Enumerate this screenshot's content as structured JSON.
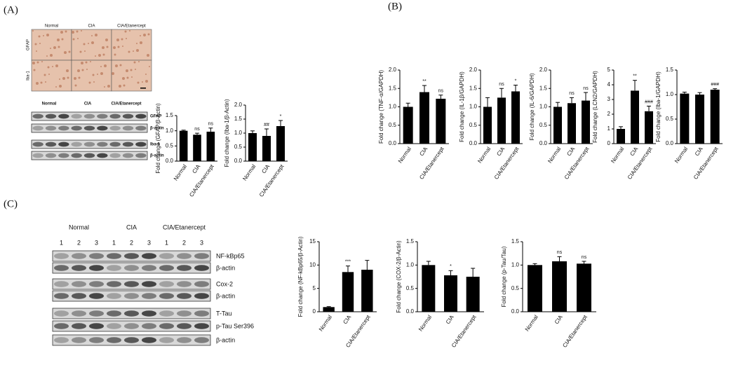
{
  "figure": {
    "panels": [
      "(A)",
      "(B)",
      "(C)"
    ],
    "micro": {
      "columns": [
        "Normal",
        "CIA",
        "CIA/Etanercept"
      ],
      "rows": [
        "GFAP",
        "Iba-1"
      ]
    },
    "blot_a": {
      "groups": [
        "Normal",
        "CIA",
        "CIA/Etanercept"
      ],
      "rows": [
        "GFAP",
        "β-actin",
        "Iba-1",
        "β-actin"
      ]
    },
    "blot_c": {
      "groups": [
        "Normal",
        "CIA",
        "CIA/Etanercept"
      ],
      "lanes": [
        "1",
        "2",
        "3"
      ],
      "rows": [
        "NF-kBp65",
        "β-actin",
        "Cox-2",
        "β-actin",
        "T-Tau",
        "p-Tau Ser396",
        "β-actin"
      ]
    }
  },
  "chart_data": [
    {
      "type": "bar",
      "ylabel": "Fold change (GFAP/β-Actin)",
      "categories": [
        "Normal",
        "CIA",
        "CIA/Etanercept"
      ],
      "values": [
        1.0,
        0.87,
        0.97
      ],
      "errors": [
        0.02,
        0.05,
        0.12
      ],
      "annotations": [
        null,
        "ns",
        "ns"
      ],
      "color": "#000000",
      "ylim": [
        0,
        1.5
      ],
      "yticks": [
        {
          "value": 0,
          "label": "0.0"
        },
        0.5,
        {
          "value": 1,
          "label": "1.0"
        },
        1.5
      ]
    },
    {
      "type": "bar",
      "ylabel": "Fold change (Iba-1/β-Actin)",
      "categories": [
        "Normal",
        "CIA",
        "CIA/Etanercept"
      ],
      "values": [
        1.0,
        0.9,
        1.25
      ],
      "errors": [
        0.08,
        0.25,
        0.2
      ],
      "annotations": [
        null,
        "##",
        "*"
      ],
      "color": "#000000",
      "ylim": [
        0,
        2
      ],
      "yticks": [
        {
          "value": 0,
          "label": "0.0"
        },
        0.5,
        {
          "value": 1,
          "label": "1.0"
        },
        1.5,
        {
          "value": 2,
          "label": "2.0"
        }
      ]
    },
    {
      "type": "bar",
      "ylabel": "Fold change (TNF-α/GAPDH)",
      "categories": [
        "Normal",
        "CIA",
        "CIA/Etanercept"
      ],
      "values": [
        1.0,
        1.4,
        1.22
      ],
      "errors": [
        0.1,
        0.18,
        0.1
      ],
      "annotations": [
        null,
        "**",
        "ns"
      ],
      "color": "#000000",
      "ylim": [
        0,
        2
      ],
      "yticks": [
        {
          "value": 0,
          "label": "0.0"
        },
        0.5,
        {
          "value": 1,
          "label": "1.0"
        },
        1.5,
        {
          "value": 2,
          "label": "2.0"
        }
      ]
    },
    {
      "type": "bar",
      "ylabel": "Fold change (IL-1β/GAPDH)",
      "categories": [
        "Normal",
        "CIA",
        "CIA/Etanercept"
      ],
      "values": [
        1.0,
        1.25,
        1.42
      ],
      "errors": [
        0.25,
        0.25,
        0.17
      ],
      "annotations": [
        null,
        "ns",
        "*"
      ],
      "color": "#000000",
      "ylim": [
        0,
        2
      ],
      "yticks": [
        {
          "value": 0,
          "label": "0.0"
        },
        0.5,
        {
          "value": 1,
          "label": "1.0"
        },
        1.5,
        {
          "value": 2,
          "label": "2.0"
        }
      ]
    },
    {
      "type": "bar",
      "ylabel": "Fold change (IL-6/GAPDH)",
      "categories": [
        "Normal",
        "CIA",
        "CIA/Etanercept"
      ],
      "values": [
        1.0,
        1.1,
        1.17
      ],
      "errors": [
        0.12,
        0.15,
        0.22
      ],
      "annotations": [
        null,
        "ns",
        "ns"
      ],
      "color": "#000000",
      "ylim": [
        0,
        2
      ],
      "yticks": [
        {
          "value": 0,
          "label": "0.0"
        },
        0.5,
        {
          "value": 1,
          "label": "1.0"
        },
        1.5,
        {
          "value": 2,
          "label": "2.0"
        }
      ]
    },
    {
      "type": "bar",
      "ylabel": "Fold change (LCN2/GAPDH)",
      "categories": [
        "Normal",
        "CIA",
        "CIA/Etanercept"
      ],
      "values": [
        1.0,
        3.6,
        2.2
      ],
      "errors": [
        0.15,
        0.7,
        0.35
      ],
      "annotations": [
        null,
        "**",
        "###"
      ],
      "color": "#000000",
      "ylim": [
        0,
        5
      ],
      "yticks": [
        0,
        1,
        2,
        3,
        4,
        5
      ]
    },
    {
      "type": "bar",
      "ylabel": "Fold change (Iba-1/GAPDH)",
      "categories": [
        "Normal",
        "CIA",
        "CIA/Etanercept"
      ],
      "values": [
        1.02,
        1.0,
        1.1
      ],
      "errors": [
        0.03,
        0.04,
        0.02
      ],
      "annotations": [
        null,
        null,
        "###"
      ],
      "color": "#000000",
      "ylim": [
        0,
        1.5
      ],
      "yticks": [
        {
          "value": 0,
          "label": "0.0"
        },
        0.5,
        {
          "value": 1,
          "label": "1.0"
        },
        1.5
      ]
    },
    {
      "type": "bar",
      "ylabel": "Fold change (NF-kBp65/β-Actin)",
      "categories": [
        "Normal",
        "CIA",
        "CIA/Etanercept"
      ],
      "values": [
        1.0,
        8.5,
        9.0
      ],
      "errors": [
        0.1,
        1.3,
        2.0
      ],
      "annotations": [
        null,
        "***",
        null
      ],
      "color": "#000000",
      "ylim": [
        0,
        15
      ],
      "yticks": [
        0,
        5,
        10,
        15
      ]
    },
    {
      "type": "bar",
      "ylabel": "Fold change (COX-2/β-Actin)",
      "categories": [
        "Normal",
        "CIA",
        "CIA/Etanercept"
      ],
      "values": [
        1.0,
        0.78,
        0.75
      ],
      "errors": [
        0.08,
        0.1,
        0.18
      ],
      "annotations": [
        null,
        "*",
        null
      ],
      "color": "#000000",
      "ylim": [
        0,
        1.5
      ],
      "yticks": [
        {
          "value": 0,
          "label": "0.0"
        },
        0.5,
        {
          "value": 1,
          "label": "1.0"
        },
        1.5
      ]
    },
    {
      "type": "bar",
      "ylabel": "Fold change (p-Tau/Tau)",
      "categories": [
        "Normal",
        "CIA",
        "CIA/Etanercept"
      ],
      "values": [
        1.0,
        1.08,
        1.03
      ],
      "errors": [
        0.03,
        0.1,
        0.05
      ],
      "annotations": [
        null,
        "ns",
        "ns"
      ],
      "color": "#000000",
      "ylim": [
        0,
        1.5
      ],
      "yticks": [
        {
          "value": 0,
          "label": "0.0"
        },
        0.5,
        {
          "value": 1,
          "label": "1.0"
        },
        1.5
      ]
    }
  ]
}
